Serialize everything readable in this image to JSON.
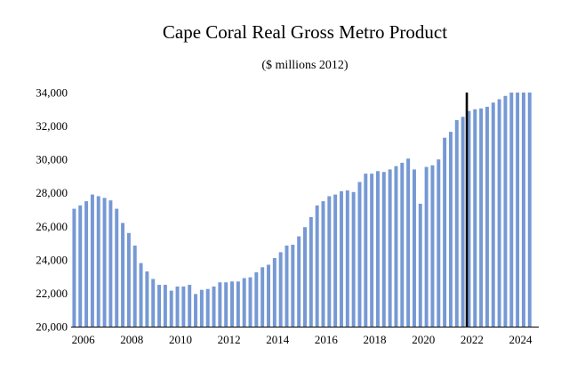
{
  "chart_data": {
    "type": "bar",
    "title": "Cape Coral Real Gross Metro Product",
    "subtitle": "($ millions 2012)",
    "xlabel": "",
    "ylabel": "",
    "ylim": [
      20000,
      34000
    ],
    "yticks": [
      20000,
      22000,
      24000,
      26000,
      28000,
      30000,
      32000,
      34000
    ],
    "ytick_labels": [
      "20,000",
      "22,000",
      "24,000",
      "26,000",
      "28,000",
      "30,000",
      "32,000",
      "34,000"
    ],
    "xtick_labels": [
      "2006",
      "2008",
      "2010",
      "2012",
      "2014",
      "2016",
      "2018",
      "2020",
      "2022",
      "2024"
    ],
    "x_start": 2005.5,
    "step": 0.25,
    "forecast_marker_x": 2021.75,
    "bar_color": "#7699d4",
    "marker_color": "#000000",
    "values": [
      27050,
      27250,
      27500,
      27900,
      27800,
      27700,
      27550,
      27050,
      26200,
      25600,
      24850,
      23800,
      23300,
      22850,
      22500,
      22500,
      22150,
      22400,
      22400,
      22500,
      21950,
      22200,
      22250,
      22400,
      22650,
      22650,
      22700,
      22700,
      22900,
      22950,
      23250,
      23550,
      23700,
      24100,
      24450,
      24850,
      24900,
      25400,
      25950,
      26550,
      27250,
      27500,
      27800,
      27900,
      28100,
      28150,
      28050,
      28650,
      29150,
      29150,
      29300,
      29250,
      29400,
      29600,
      29800,
      30050,
      29400,
      27350,
      29550,
      29650,
      30000,
      31300,
      31650,
      32350,
      32550,
      32900,
      33000,
      33050,
      33150,
      33400,
      33600,
      33800,
      34000,
      34000,
      34000,
      34000
    ]
  }
}
